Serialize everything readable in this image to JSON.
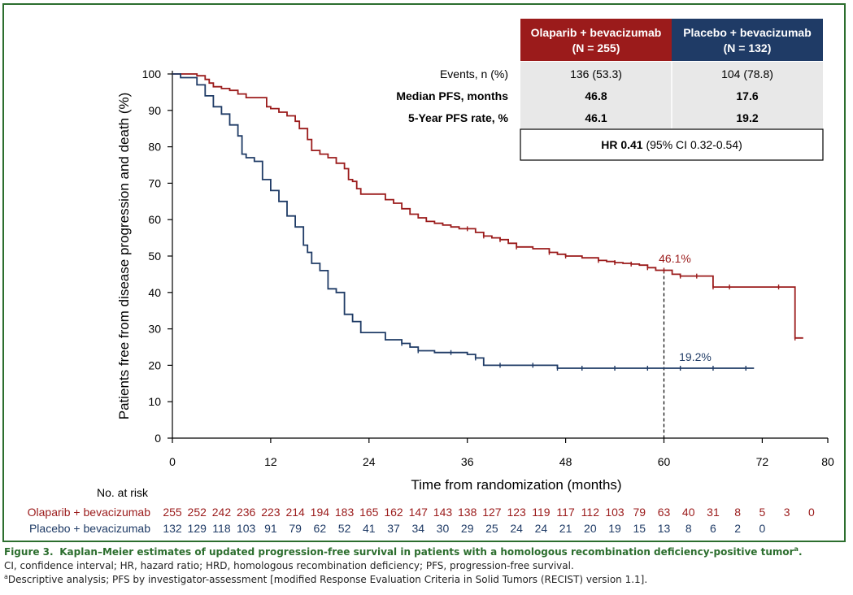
{
  "colors": {
    "olaparib": "#9b1b1b",
    "placebo": "#1f3b66",
    "frame": "#2c6e2e",
    "table_fill": "#e8e8e8"
  },
  "chart_data": {
    "type": "line",
    "subtype": "kaplan-meier",
    "xlabel": "Time from randomization (months)",
    "ylabel": "Patients free from disease progression and death (%)",
    "xlim": [
      0,
      80
    ],
    "ylim": [
      0,
      100
    ],
    "xticks": [
      0,
      12,
      24,
      36,
      48,
      60,
      72,
      80
    ],
    "yticks": [
      0,
      10,
      20,
      30,
      40,
      50,
      60,
      70,
      80,
      90,
      100
    ],
    "reference_time": 60,
    "series": [
      {
        "name": "Olaparib + bevacizumab",
        "key": "olaparib",
        "label_at_60": "46.1%",
        "x": [
          0,
          1,
          2,
          3,
          4,
          4.5,
          5,
          6,
          7,
          8,
          9,
          10,
          11,
          11.5,
          12,
          13,
          14,
          15,
          15.5,
          16,
          16.5,
          17,
          18,
          19,
          20,
          21,
          21.5,
          22,
          22.5,
          23,
          24,
          26,
          27,
          28,
          29,
          30,
          31,
          32,
          33,
          34,
          35,
          36,
          37,
          38,
          39,
          40,
          41,
          42,
          44,
          46,
          47,
          48,
          50,
          52,
          53,
          54,
          55,
          56,
          57,
          58,
          59,
          60,
          61,
          62,
          63,
          64,
          65,
          66,
          67,
          68,
          70,
          74,
          75.5,
          76,
          77
        ],
        "y": [
          100,
          100,
          100,
          99.5,
          98.5,
          97.5,
          96.5,
          96,
          95.5,
          94.5,
          93.5,
          93.5,
          93.5,
          91,
          90.5,
          89.5,
          88.5,
          87,
          85,
          85,
          82,
          79,
          78,
          77,
          75.5,
          74,
          71,
          70.5,
          68.5,
          67,
          67,
          65.5,
          64.5,
          63,
          61.5,
          60.5,
          59.5,
          59,
          58.5,
          58,
          57.5,
          57.5,
          56.5,
          55.5,
          55,
          54.5,
          53.5,
          52.5,
          52,
          51,
          50.5,
          50,
          49.5,
          48.8,
          48.5,
          48.2,
          48,
          47.8,
          47.5,
          46.8,
          46.1,
          46.1,
          45,
          44.5,
          44.5,
          44.5,
          44.5,
          41.5,
          41.5,
          41.5,
          41.5,
          41.5,
          41.5,
          27.5,
          27.5
        ]
      },
      {
        "name": "Placebo + bevacizumab",
        "key": "placebo",
        "label_at_60": "19.2%",
        "x": [
          0,
          0.5,
          1,
          2,
          3,
          4,
          5,
          6,
          7,
          8,
          8.5,
          9,
          10,
          11,
          12,
          13,
          14,
          15,
          16,
          16.5,
          17,
          18,
          19,
          20,
          21,
          22,
          23,
          24,
          26,
          27,
          28,
          29,
          30,
          32,
          34,
          36,
          37,
          38,
          40,
          42,
          44,
          46,
          47,
          48,
          50,
          52,
          54,
          56,
          58,
          60,
          62,
          64,
          66,
          68,
          70,
          71
        ],
        "y": [
          100,
          100,
          99,
          99,
          97,
          94,
          91,
          89,
          86,
          83,
          78,
          77,
          76,
          71,
          68,
          65,
          61,
          58,
          53,
          51,
          48,
          46,
          41,
          40,
          34,
          32,
          29,
          29,
          27,
          27,
          26,
          25,
          24,
          23.5,
          23.5,
          23,
          22,
          20,
          20,
          20,
          20,
          20,
          19.2,
          19.2,
          19.2,
          19.2,
          19.2,
          19.2,
          19.2,
          19.2,
          19.2,
          19.2,
          19.2,
          19.2,
          19.2,
          19.2
        ]
      }
    ]
  },
  "table": {
    "headers": [
      {
        "line1": "Olaparib + bevacizumab",
        "line2": "(N = 255)"
      },
      {
        "line1": "Placebo + bevacizumab",
        "line2": "(N = 132)"
      }
    ],
    "rows": [
      {
        "label": "Events, n (%)",
        "values": [
          "136 (53.3)",
          "104 (78.8)"
        ]
      },
      {
        "label": "Median PFS, months",
        "values": [
          "46.8",
          "17.6"
        ]
      },
      {
        "label": "5-Year PFS rate, %",
        "values": [
          "46.1",
          "19.2"
        ]
      }
    ],
    "hr_bold": "HR 0.41",
    "hr_rest": " (95% CI 0.32-0.54)"
  },
  "at_risk": {
    "title": "No. at risk",
    "times": [
      0,
      3,
      6,
      9,
      12,
      15,
      18,
      21,
      24,
      27,
      30,
      33,
      36,
      39,
      42,
      45,
      48,
      51,
      54,
      57,
      60,
      63,
      66,
      69,
      72,
      75,
      78
    ],
    "olaparib": {
      "label": "Olaparib + bevacizumab",
      "counts": [
        "255",
        "252",
        "242",
        "236",
        "223",
        "214",
        "194",
        "183",
        "165",
        "162",
        "147",
        "143",
        "138",
        "127",
        "123",
        "119",
        "117",
        "112",
        "103",
        "79",
        "63",
        "40",
        "31",
        "8",
        "5",
        "3",
        "0"
      ]
    },
    "placebo": {
      "label": "Placebo + bevacizumab",
      "counts": [
        "132",
        "129",
        "118",
        "103",
        "91",
        "79",
        "62",
        "52",
        "41",
        "37",
        "34",
        "30",
        "29",
        "25",
        "24",
        "24",
        "21",
        "20",
        "19",
        "15",
        "13",
        "8",
        "6",
        "2",
        "0"
      ]
    }
  },
  "caption": {
    "fig_label": "Figure 3.",
    "title": "Kaplan–Meier estimates of updated progression-free survival in patients with a homologous recombination deficiency-positive tumor",
    "title_sup": "a",
    "abbrev": "CI, confidence interval; HR, hazard ratio; HRD, homologous recombination deficiency; PFS, progression-free survival.",
    "footnote_sup": "a",
    "footnote": "Descriptive analysis; PFS by investigator-assessment [modified Response Evaluation Criteria in Solid Tumors (RECIST) version 1.1]."
  }
}
